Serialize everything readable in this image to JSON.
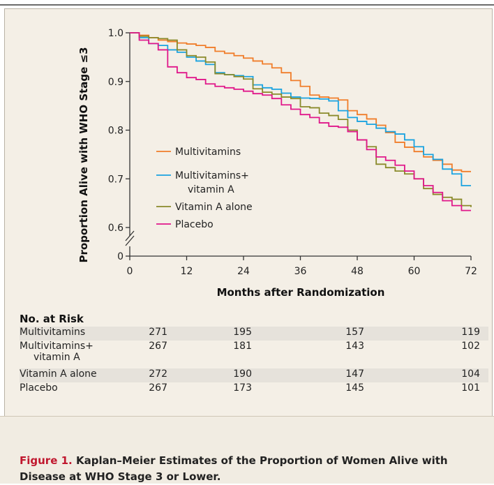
{
  "chart_data": {
    "type": "line",
    "subtype": "kaplan-meier step curves",
    "ylabel": "Proportion Alive with WHO Stage ≤3",
    "xlabel": "Months after Randomization",
    "x_ticks": [
      0,
      12,
      24,
      36,
      48,
      60,
      72
    ],
    "y_ticks": [
      0,
      0.6,
      0.7,
      0.8,
      0.9,
      1.0
    ],
    "y_tick_labels": [
      "0",
      "0.6",
      "0.7",
      "0.8",
      "0.9",
      "1.0"
    ],
    "xlim": [
      0,
      72
    ],
    "ylim": [
      0.55,
      1.0
    ],
    "y_axis_break": true,
    "legend_position": "center-left",
    "series": [
      {
        "name": "Multivitamins",
        "color": "#f07d2a",
        "points": [
          [
            0,
            1.0
          ],
          [
            2,
            0.995
          ],
          [
            4,
            0.99
          ],
          [
            6,
            0.985
          ],
          [
            8,
            0.982
          ],
          [
            10,
            0.979
          ],
          [
            12,
            0.977
          ],
          [
            14,
            0.974
          ],
          [
            16,
            0.97
          ],
          [
            18,
            0.962
          ],
          [
            20,
            0.958
          ],
          [
            22,
            0.953
          ],
          [
            24,
            0.948
          ],
          [
            26,
            0.942
          ],
          [
            28,
            0.936
          ],
          [
            30,
            0.928
          ],
          [
            32,
            0.918
          ],
          [
            34,
            0.902
          ],
          [
            36,
            0.89
          ],
          [
            38,
            0.872
          ],
          [
            40,
            0.868
          ],
          [
            42,
            0.866
          ],
          [
            44,
            0.862
          ],
          [
            46,
            0.84
          ],
          [
            48,
            0.832
          ],
          [
            50,
            0.823
          ],
          [
            52,
            0.81
          ],
          [
            54,
            0.795
          ],
          [
            56,
            0.775
          ],
          [
            58,
            0.765
          ],
          [
            60,
            0.756
          ],
          [
            62,
            0.745
          ],
          [
            64,
            0.738
          ],
          [
            66,
            0.73
          ],
          [
            68,
            0.718
          ],
          [
            70,
            0.715
          ],
          [
            72,
            0.715
          ]
        ]
      },
      {
        "name": "Multivitamins+ vitamin A",
        "color": "#1aa3e0",
        "points": [
          [
            0,
            1.0
          ],
          [
            2,
            0.99
          ],
          [
            4,
            0.978
          ],
          [
            6,
            0.974
          ],
          [
            8,
            0.965
          ],
          [
            10,
            0.96
          ],
          [
            12,
            0.95
          ],
          [
            14,
            0.942
          ],
          [
            16,
            0.935
          ],
          [
            18,
            0.918
          ],
          [
            20,
            0.914
          ],
          [
            22,
            0.912
          ],
          [
            24,
            0.91
          ],
          [
            26,
            0.893
          ],
          [
            28,
            0.887
          ],
          [
            30,
            0.884
          ],
          [
            32,
            0.876
          ],
          [
            34,
            0.868
          ],
          [
            36,
            0.866
          ],
          [
            38,
            0.865
          ],
          [
            40,
            0.864
          ],
          [
            42,
            0.86
          ],
          [
            44,
            0.84
          ],
          [
            46,
            0.826
          ],
          [
            48,
            0.818
          ],
          [
            50,
            0.812
          ],
          [
            52,
            0.804
          ],
          [
            54,
            0.797
          ],
          [
            56,
            0.792
          ],
          [
            58,
            0.78
          ],
          [
            60,
            0.766
          ],
          [
            62,
            0.75
          ],
          [
            64,
            0.74
          ],
          [
            66,
            0.72
          ],
          [
            68,
            0.71
          ],
          [
            70,
            0.686
          ],
          [
            72,
            0.686
          ]
        ]
      },
      {
        "name": "Vitamin A alone",
        "color": "#8a8a2a",
        "points": [
          [
            0,
            1.0
          ],
          [
            2,
            0.993
          ],
          [
            4,
            0.99
          ],
          [
            6,
            0.988
          ],
          [
            8,
            0.985
          ],
          [
            10,
            0.965
          ],
          [
            12,
            0.953
          ],
          [
            14,
            0.95
          ],
          [
            16,
            0.94
          ],
          [
            18,
            0.916
          ],
          [
            20,
            0.914
          ],
          [
            22,
            0.91
          ],
          [
            24,
            0.905
          ],
          [
            26,
            0.885
          ],
          [
            28,
            0.878
          ],
          [
            30,
            0.874
          ],
          [
            32,
            0.868
          ],
          [
            34,
            0.865
          ],
          [
            36,
            0.848
          ],
          [
            38,
            0.846
          ],
          [
            40,
            0.835
          ],
          [
            42,
            0.83
          ],
          [
            44,
            0.822
          ],
          [
            46,
            0.8
          ],
          [
            48,
            0.78
          ],
          [
            50,
            0.766
          ],
          [
            52,
            0.73
          ],
          [
            54,
            0.723
          ],
          [
            56,
            0.716
          ],
          [
            58,
            0.71
          ],
          [
            60,
            0.7
          ],
          [
            62,
            0.68
          ],
          [
            64,
            0.668
          ],
          [
            66,
            0.662
          ],
          [
            68,
            0.658
          ],
          [
            70,
            0.645
          ],
          [
            72,
            0.642
          ]
        ]
      },
      {
        "name": "Placebo",
        "color": "#e0178a",
        "points": [
          [
            0,
            1.0
          ],
          [
            2,
            0.985
          ],
          [
            4,
            0.978
          ],
          [
            6,
            0.965
          ],
          [
            8,
            0.93
          ],
          [
            10,
            0.918
          ],
          [
            12,
            0.908
          ],
          [
            14,
            0.904
          ],
          [
            16,
            0.895
          ],
          [
            18,
            0.89
          ],
          [
            20,
            0.887
          ],
          [
            22,
            0.884
          ],
          [
            24,
            0.88
          ],
          [
            26,
            0.875
          ],
          [
            28,
            0.872
          ],
          [
            30,
            0.865
          ],
          [
            32,
            0.852
          ],
          [
            34,
            0.843
          ],
          [
            36,
            0.832
          ],
          [
            38,
            0.826
          ],
          [
            40,
            0.815
          ],
          [
            42,
            0.808
          ],
          [
            44,
            0.806
          ],
          [
            46,
            0.797
          ],
          [
            48,
            0.78
          ],
          [
            50,
            0.76
          ],
          [
            52,
            0.745
          ],
          [
            54,
            0.738
          ],
          [
            56,
            0.728
          ],
          [
            58,
            0.716
          ],
          [
            60,
            0.7
          ],
          [
            62,
            0.686
          ],
          [
            64,
            0.672
          ],
          [
            66,
            0.655
          ],
          [
            68,
            0.645
          ],
          [
            70,
            0.635
          ],
          [
            72,
            0.635
          ]
        ]
      }
    ]
  },
  "risk_table": {
    "title": "No. at Risk",
    "rows": [
      {
        "label": "Multivitamins",
        "label_line2": "",
        "values": [
          "271",
          "195",
          "157",
          "119"
        ]
      },
      {
        "label": "Multivitamins+",
        "label_line2": "vitamin A",
        "values": [
          "267",
          "181",
          "143",
          "102"
        ]
      },
      {
        "label": "Vitamin A alone",
        "label_line2": "",
        "values": [
          "272",
          "190",
          "147",
          "104"
        ]
      },
      {
        "label": "Placebo",
        "label_line2": "",
        "values": [
          "267",
          "173",
          "145",
          "101"
        ]
      }
    ]
  },
  "caption": {
    "label": "Figure 1.",
    "text": "Kaplan–Meier Estimates of the Proportion of Women Alive with Disease at WHO Stage 3 or Lower."
  }
}
